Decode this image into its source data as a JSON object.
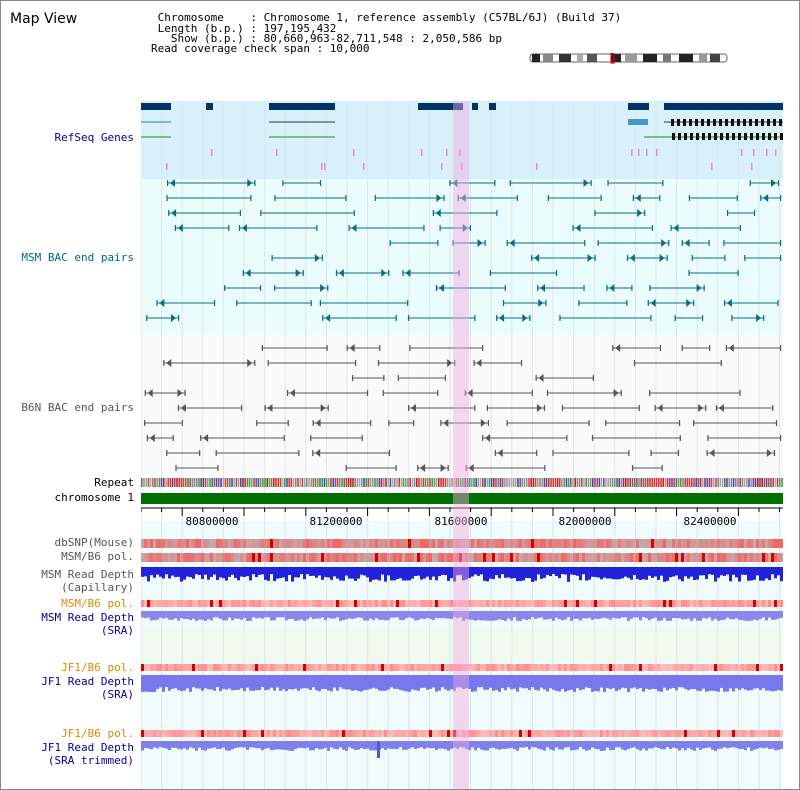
{
  "header": {
    "title": "Map View",
    "info_lines": [
      " Chromosome    : Chromosome 1, reference assembly (C57BL/6J) (Build 37)",
      " Length (b.p.) : 197,195,432",
      "   Show (b.p.) : 80,660,963-82,711,548 : 2,050,586 bp",
      "Read coverage check span : 10,000"
    ]
  },
  "tracks": {
    "refseq": "RefSeq Genes",
    "msm_bac": "MSM BAC end pairs",
    "b6n_bac": "B6N BAC end pairs",
    "repeat": "Repeat",
    "chromosome": "chromosome 1",
    "dbsnp": "dbSNP(Mouse)",
    "msm_b6_pol": "MSM/B6 pol.",
    "msm_depth_cap_1": "MSM Read Depth",
    "msm_depth_cap_2": "(Capillary)",
    "msm_b6_pol2": "MSM/B6 pol.",
    "msm_depth_sra_1": "MSM Read Depth",
    "msm_depth_sra_2": "(SRA)",
    "jf1_b6_pol": "JF1/B6 pol.",
    "jf1_depth_sra_1": "JF1 Read Depth",
    "jf1_depth_sra_2": "(SRA)",
    "jf1_b6_pol2": "JF1/B6 pol.",
    "jf1_depth_trim_1": "JF1 Read Depth",
    "jf1_depth_trim_2": "(SRA trimmed)"
  },
  "axis": {
    "ticks": [
      "80800000",
      "81200000",
      "81600000",
      "82000000",
      "82400000"
    ]
  },
  "colors": {
    "refseq_bg": "#d8f0fa",
    "bac_bg": "#eafcfc",
    "msm_color": "#0e6b87",
    "b6n_color": "#555555",
    "chrom_green": "#007000",
    "highlight": "#f8d6ef"
  }
}
